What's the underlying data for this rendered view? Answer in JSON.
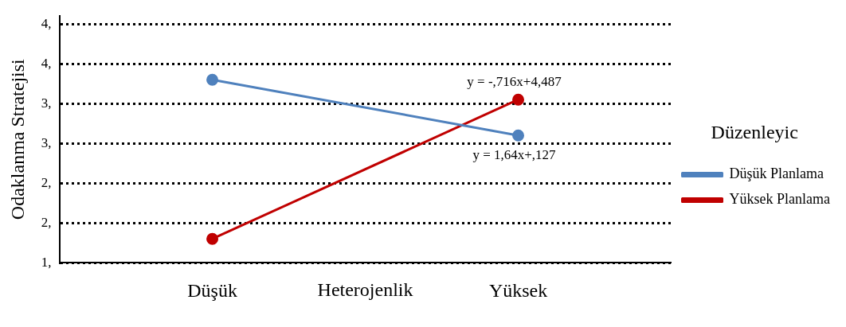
{
  "chart_data": {
    "type": "line",
    "ylabel": "Odaklanma Stratejisi",
    "xlabel": "Heterojenlik",
    "legend_title": "Düzenleyic",
    "categories": [
      "Düşük",
      "Yüksek"
    ],
    "series": [
      {
        "name": "Düşük Planlama",
        "color": "#4f81bd",
        "values": [
          3.8,
          3.1
        ]
      },
      {
        "name": "Yüksek Planlama",
        "color": "#c00000",
        "values": [
          1.8,
          3.55
        ]
      }
    ],
    "ylim": [
      1.5,
      4.6
    ],
    "yticks": [
      {
        "value": 1.5,
        "label": "1,"
      },
      {
        "value": 2,
        "label": "2,"
      },
      {
        "value": 2.5,
        "label": "2,"
      },
      {
        "value": 3,
        "label": "3,"
      },
      {
        "value": 3.5,
        "label": "3,"
      },
      {
        "value": 4,
        "label": "4,"
      },
      {
        "value": 4.5,
        "label": "4,"
      }
    ],
    "grid": "y",
    "legend": "right",
    "marker": "circle",
    "line_style": "solid",
    "annotations": [
      "y = -,716x+4,487",
      "y = 1,64x+,127"
    ]
  }
}
